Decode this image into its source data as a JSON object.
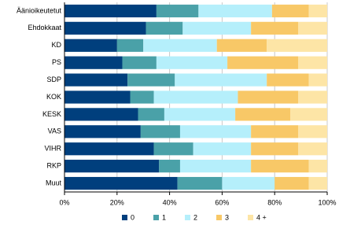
{
  "chart_data": {
    "type": "stacked_bar_horizontal",
    "categories": [
      "Äänioikeutetut",
      "Ehdokkaat",
      "KD",
      "PS",
      "SDP",
      "KOK",
      "KESK",
      "VAS",
      "VIHR",
      "RKP",
      "Muut"
    ],
    "series": [
      {
        "name": "0",
        "color": "#003f7d",
        "values": [
          35,
          31,
          20,
          22,
          24,
          25,
          28,
          29,
          34,
          36,
          43
        ]
      },
      {
        "name": "1",
        "color": "#4aa1a8",
        "values": [
          16,
          14,
          10,
          13,
          18,
          9,
          10,
          15,
          15,
          8,
          17
        ]
      },
      {
        "name": "2",
        "color": "#b5effb",
        "values": [
          28,
          26,
          28,
          27,
          35,
          32,
          27,
          27,
          22,
          27,
          20
        ]
      },
      {
        "name": "3",
        "color": "#f8c867",
        "values": [
          14,
          18,
          19,
          27,
          16,
          23,
          21,
          18,
          18,
          22,
          13
        ]
      },
      {
        "name": "4 +",
        "color": "#fde5a6",
        "values": [
          7,
          11,
          23,
          11,
          7,
          11,
          14,
          11,
          11,
          7,
          7
        ]
      }
    ],
    "xlim": [
      0,
      100
    ],
    "xticks": [
      {
        "value": 0,
        "label": "0%"
      },
      {
        "value": 20,
        "label": "20%"
      },
      {
        "value": 40,
        "label": "40%"
      },
      {
        "value": 60,
        "label": "60%"
      },
      {
        "value": 80,
        "label": "80%"
      },
      {
        "value": 100,
        "label": "100%"
      }
    ],
    "grid": true,
    "legend": "bottom"
  }
}
